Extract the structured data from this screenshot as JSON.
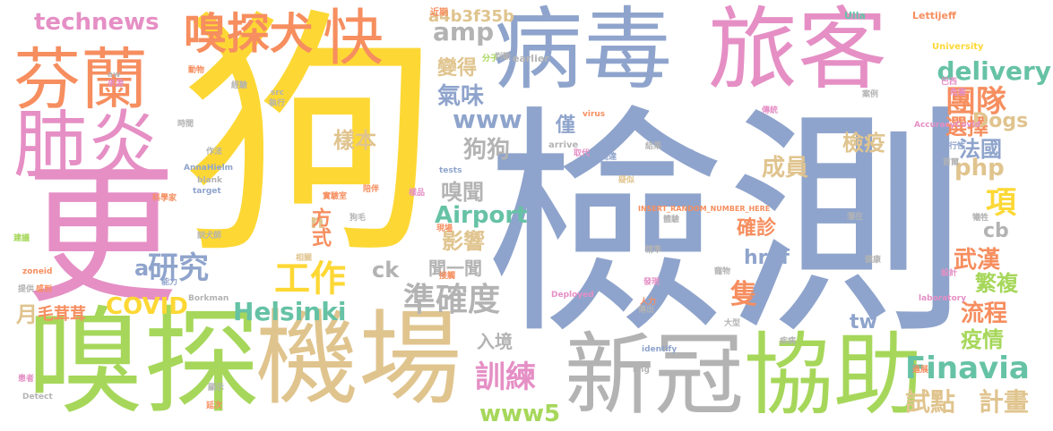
{
  "palette": {
    "yellow": "#fdd835",
    "blue": "#8fa4cc",
    "pink": "#e58fc5",
    "green": "#a6d75a",
    "orange": "#f68e5f",
    "teal": "#66c2a5",
    "tan": "#e0c48e",
    "gray": "#b3b3b3"
  },
  "words": [
    {
      "text": "狗",
      "color": "yellow"
    },
    {
      "text": "檢測",
      "color": "blue"
    },
    {
      "text": "病毒",
      "color": "blue"
    },
    {
      "text": "旅客",
      "color": "pink"
    },
    {
      "text": "嗅探",
      "color": "green"
    },
    {
      "text": "機場",
      "color": "tan"
    },
    {
      "text": "新冠",
      "color": "gray"
    },
    {
      "text": "協助",
      "color": "green"
    },
    {
      "text": "芬蘭",
      "color": "orange"
    },
    {
      "text": "肺炎",
      "color": "pink"
    },
    {
      "text": "更",
      "color": "pink"
    },
    {
      "text": "嗅探犬",
      "color": "orange"
    },
    {
      "text": "快",
      "color": "orange"
    },
    {
      "text": "technews",
      "color": "pink"
    },
    {
      "text": "a4b3f35b",
      "color": "tan"
    },
    {
      "text": "amp",
      "color": "gray"
    },
    {
      "text": "delivery",
      "color": "teal"
    },
    {
      "text": "團隊",
      "color": "orange"
    },
    {
      "text": "變得",
      "color": "tan"
    },
    {
      "text": "氣味",
      "color": "blue"
    },
    {
      "text": "選擇",
      "color": "orange"
    },
    {
      "text": "www",
      "color": "blue"
    },
    {
      "text": "Dogs",
      "color": "tan"
    },
    {
      "text": "法國",
      "color": "blue"
    },
    {
      "text": "樣本",
      "color": "tan"
    },
    {
      "text": "狗狗",
      "color": "gray"
    },
    {
      "text": "檢疫",
      "color": "tan"
    },
    {
      "text": "僅",
      "color": "blue"
    },
    {
      "text": "php",
      "color": "tan"
    },
    {
      "text": "成員",
      "color": "tan"
    },
    {
      "text": "嗅聞",
      "color": "gray"
    },
    {
      "text": "項",
      "color": "yellow"
    },
    {
      "text": "Airport",
      "color": "teal"
    },
    {
      "text": "影響",
      "color": "tan"
    },
    {
      "text": "確診",
      "color": "orange"
    },
    {
      "text": "研究",
      "color": "blue"
    },
    {
      "text": "工作",
      "color": "yellow"
    },
    {
      "text": "a",
      "color": "blue"
    },
    {
      "text": "n",
      "color": "tan"
    },
    {
      "text": "方式",
      "color": "orange"
    },
    {
      "text": "ck",
      "color": "gray"
    },
    {
      "text": "聞一聞",
      "color": "gray"
    },
    {
      "text": "href",
      "color": "blue"
    },
    {
      "text": "cb",
      "color": "gray"
    },
    {
      "text": "武漢",
      "color": "orange"
    },
    {
      "text": "隻",
      "color": "orange"
    },
    {
      "text": "準確度",
      "color": "gray"
    },
    {
      "text": "繁複",
      "color": "green"
    },
    {
      "text": "COVID",
      "color": "yellow"
    },
    {
      "text": "月",
      "color": "tan"
    },
    {
      "text": "毛茸茸",
      "color": "orange"
    },
    {
      "text": "Helsinki",
      "color": "teal"
    },
    {
      "text": "tw",
      "color": "blue"
    },
    {
      "text": "流程",
      "color": "orange"
    },
    {
      "text": "入境",
      "color": "gray"
    },
    {
      "text": "疫情",
      "color": "green"
    },
    {
      "text": "Finavia",
      "color": "teal"
    },
    {
      "text": "訓練",
      "color": "pink"
    },
    {
      "text": "www5",
      "color": "green"
    },
    {
      "text": "試點",
      "color": "tan"
    },
    {
      "text": "計畫",
      "color": "tan"
    },
    {
      "text": "近期",
      "color": "orange"
    },
    {
      "text": "Ulla",
      "color": "teal"
    },
    {
      "text": "Lettijeff",
      "color": "orange"
    },
    {
      "text": "University",
      "color": "yellow"
    },
    {
      "text": "earlier",
      "color": "gray"
    },
    {
      "text": "巴西",
      "color": "pink"
    },
    {
      "text": "危害",
      "color": "pink"
    },
    {
      "text": "arrive",
      "color": "gray"
    },
    {
      "text": "virus",
      "color": "orange"
    },
    {
      "text": "AccuracyCovid",
      "color": "pink"
    },
    {
      "text": "AnnaHielm",
      "color": "blue"
    },
    {
      "text": "blank",
      "color": "gray"
    },
    {
      "text": "target",
      "color": "blue"
    },
    {
      "text": "tests",
      "color": "blue"
    },
    {
      "text": "INSERT_RANDOM_NUMBER_HERE",
      "color": "orange"
    },
    {
      "text": "zoneid",
      "color": "orange"
    },
    {
      "text": "Borkman",
      "color": "gray"
    },
    {
      "text": "Deployed",
      "color": "pink"
    },
    {
      "text": "laboratory",
      "color": "pink"
    },
    {
      "text": "identify",
      "color": "blue"
    },
    {
      "text": "img",
      "color": "gray"
    },
    {
      "text": "Detect",
      "color": "gray"
    },
    {
      "text": "src",
      "color": "gray"
    },
    {
      "text": "aw",
      "color": "gray"
    },
    {
      "text": "實驗室",
      "color": "orange"
    },
    {
      "text": "可行性",
      "color": "blue"
    },
    {
      "text": "高達",
      "color": "blue"
    },
    {
      "text": "執行",
      "color": "gray"
    },
    {
      "text": "取代",
      "color": "pink"
    },
    {
      "text": "潛在",
      "color": "gray"
    },
    {
      "text": "健康",
      "color": "gray"
    },
    {
      "text": "首爾",
      "color": "gray"
    },
    {
      "text": "來源",
      "color": "pink"
    },
    {
      "text": "經驗",
      "color": "gray"
    },
    {
      "text": "動物",
      "color": "orange"
    },
    {
      "text": "科學家",
      "color": "orange"
    },
    {
      "text": "作法",
      "color": "gray"
    },
    {
      "text": "保護",
      "color": "blue"
    },
    {
      "text": "案例",
      "color": "gray"
    },
    {
      "text": "狗毛",
      "color": "gray"
    },
    {
      "text": "人力",
      "color": "orange"
    },
    {
      "text": "大型",
      "color": "gray"
    },
    {
      "text": "結果",
      "color": "gray"
    },
    {
      "text": "提供",
      "color": "gray"
    },
    {
      "text": "時間",
      "color": "gray"
    },
    {
      "text": "分子",
      "color": "green"
    },
    {
      "text": "判斷",
      "color": "gray"
    },
    {
      "text": "發現",
      "color": "pink"
    },
    {
      "text": "進展",
      "color": "orange"
    },
    {
      "text": "犧牲",
      "color": "gray"
    },
    {
      "text": "疾病",
      "color": "gray"
    },
    {
      "text": "感到",
      "color": "orange"
    },
    {
      "text": "建議",
      "color": "green"
    },
    {
      "text": "設計",
      "color": "pink"
    },
    {
      "text": "相關",
      "color": "tan"
    },
    {
      "text": "寵物",
      "color": "gray"
    },
    {
      "text": "體驗",
      "color": "gray"
    },
    {
      "text": "精準",
      "color": "gray"
    },
    {
      "text": "傳出",
      "color": "gray"
    },
    {
      "text": "現場",
      "color": "orange"
    },
    {
      "text": "樣品",
      "color": "pink"
    },
    {
      "text": "疑似",
      "color": "tan"
    },
    {
      "text": "患者",
      "color": "pink"
    },
    {
      "text": "接觸",
      "color": "orange"
    },
    {
      "text": "延次",
      "color": "orange"
    },
    {
      "text": "陪伴",
      "color": "orange"
    },
    {
      "text": "訓犬師",
      "color": "gray"
    },
    {
      "text": "能力",
      "color": "blue"
    },
    {
      "text": "傳統",
      "color": "pink"
    },
    {
      "text": "顯示",
      "color": "gray"
    }
  ]
}
